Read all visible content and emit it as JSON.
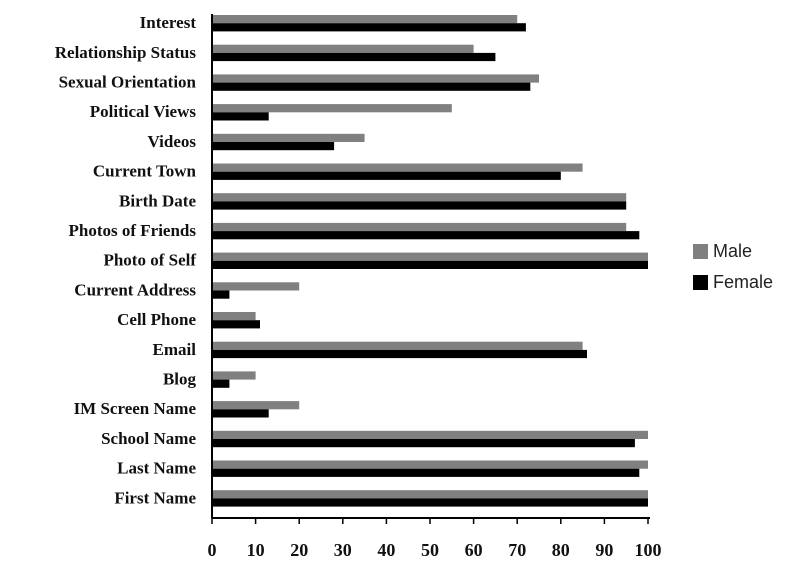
{
  "chart_data": {
    "type": "bar",
    "orientation": "horizontal",
    "categories": [
      "Interest",
      "Relationship Status",
      "Sexual Orientation",
      "Political Views",
      "Videos",
      "Current Town",
      "Birth Date",
      "Photos of Friends",
      "Photo of Self",
      "Current Address",
      "Cell Phone",
      "Email",
      "Blog",
      "IM Screen Name",
      "School Name",
      "Last Name",
      "First Name"
    ],
    "series": [
      {
        "name": "Male",
        "color": "#808080",
        "values": [
          70,
          60,
          75,
          55,
          35,
          85,
          95,
          95,
          100,
          20,
          10,
          85,
          10,
          20,
          100,
          100,
          100
        ]
      },
      {
        "name": "Female",
        "color": "#000000",
        "values": [
          72,
          65,
          73,
          13,
          28,
          80,
          95,
          98,
          100,
          4,
          11,
          86,
          4,
          13,
          97,
          98,
          100
        ]
      }
    ],
    "xtick_labels": [
      "0",
      "10",
      "20",
      "30",
      "40",
      "50",
      "60",
      "70",
      "80",
      "90",
      "100"
    ],
    "xlim": [
      0,
      100
    ],
    "legend_position": "right",
    "grid": false
  }
}
